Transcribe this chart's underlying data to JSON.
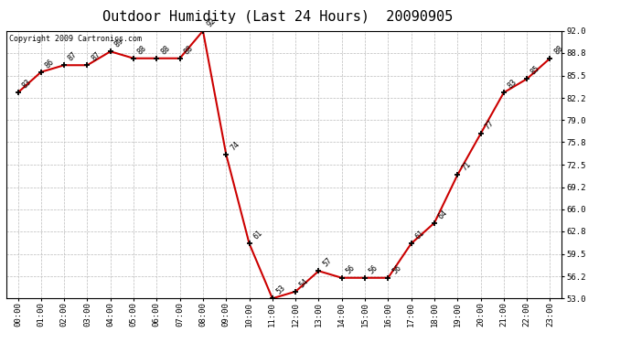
{
  "title": "Outdoor Humidity (Last 24 Hours)  20090905",
  "copyright": "Copyright 2009 Cartronics.com",
  "hours": [
    "00:00",
    "01:00",
    "02:00",
    "03:00",
    "04:00",
    "05:00",
    "06:00",
    "07:00",
    "08:00",
    "09:00",
    "10:00",
    "11:00",
    "12:00",
    "13:00",
    "14:00",
    "15:00",
    "16:00",
    "17:00",
    "18:00",
    "19:00",
    "20:00",
    "21:00",
    "22:00",
    "23:00"
  ],
  "values": [
    83,
    86,
    87,
    87,
    89,
    88,
    88,
    88,
    92,
    74,
    61,
    53,
    54,
    57,
    56,
    56,
    56,
    61,
    64,
    71,
    77,
    83,
    85,
    88
  ],
  "yticks": [
    53.0,
    56.2,
    59.5,
    62.8,
    66.0,
    69.2,
    72.5,
    75.8,
    79.0,
    82.2,
    85.5,
    88.8,
    92.0
  ],
  "ylim": [
    53.0,
    92.0
  ],
  "line_color": "#cc0000",
  "bg_color": "#ffffff",
  "grid_color": "#bbbbbb",
  "title_fontsize": 11,
  "annot_fontsize": 6,
  "tick_fontsize": 6.5,
  "copyright_fontsize": 6
}
